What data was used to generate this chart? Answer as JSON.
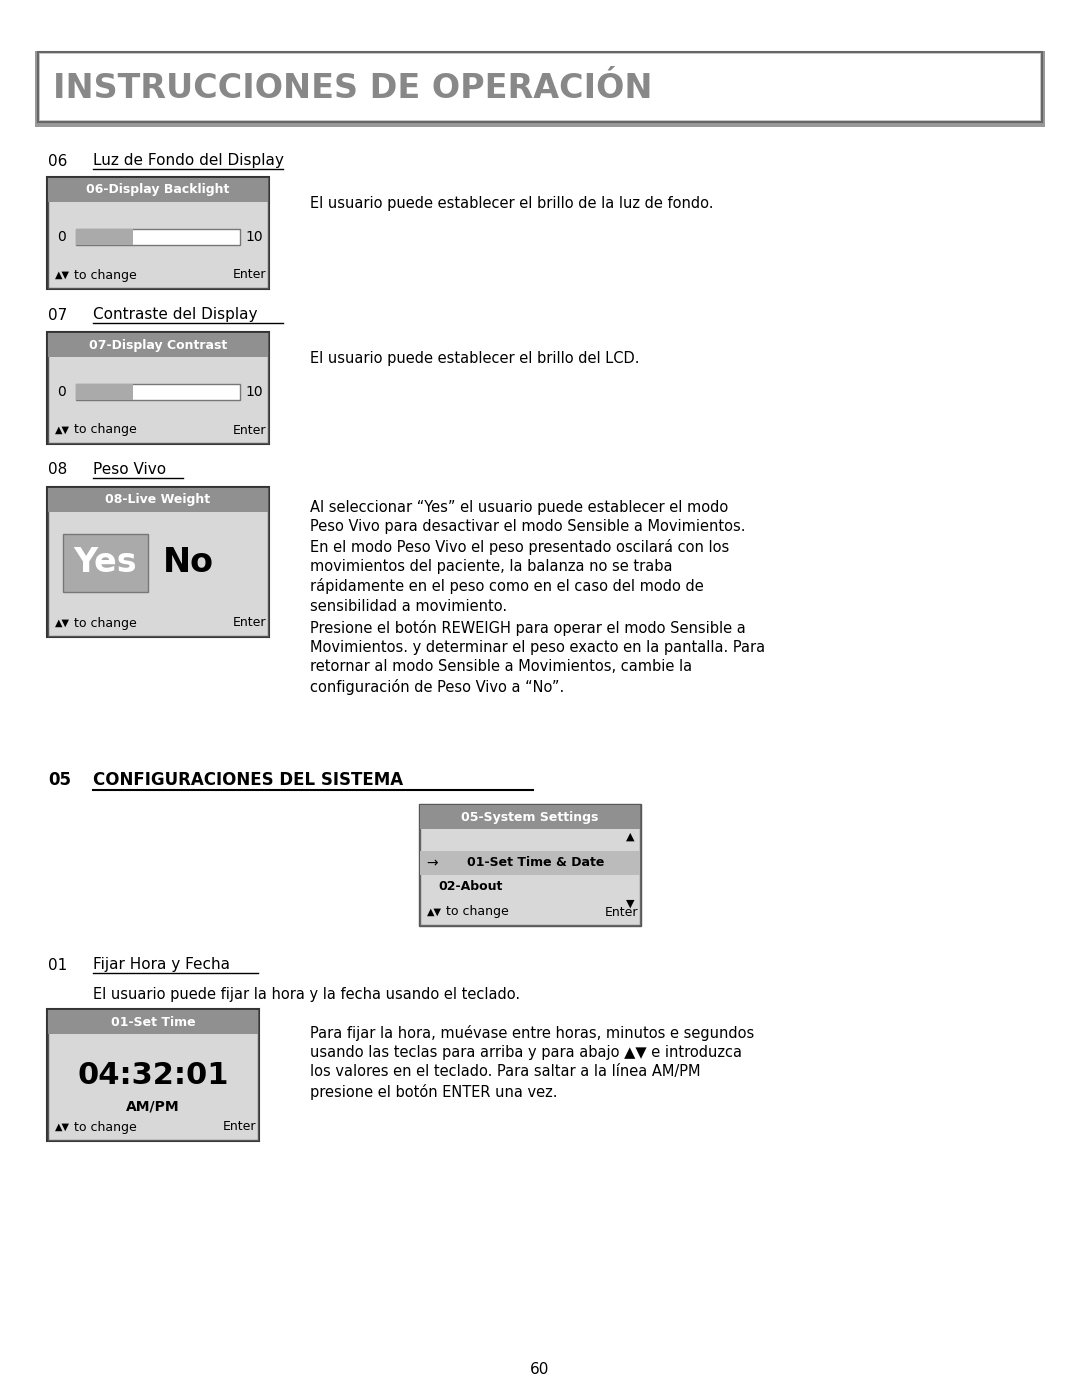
{
  "bg_color": "#ffffff",
  "title_text": "INSTRUCCIONES DE OPERACIÓN",
  "title_text_color": "#888888",
  "section06_title": "Luz de Fondo del Display",
  "section06_box_header": "06-Display Backlight",
  "section06_desc": "El usuario puede establecer el brillo de la luz de fondo.",
  "section07_title": "Contraste del Display",
  "section07_box_header": "07-Display Contrast",
  "section07_desc": "El usuario puede establecer el brillo del LCD.",
  "section08_title": "Peso Vivo",
  "section08_box_header": "08-Live Weight",
  "section08_desc1": "Al seleccionar “Yes” el usuario puede establecer el modo\nPeso Vivo para desactivar el modo Sensible a Movimientos.\nEn el modo Peso Vivo el peso presentado oscilará con los\nmovimientos del paciente, la balanza no se traba\nrápidamente en el peso como en el caso del modo de\nsensibilidad a movimiento.",
  "section08_desc2": "Presione el botón REWEIGH para operar el modo Sensible a\nMovimientos. y determinar el peso exacto en la pantalla. Para\nretornar al modo Sensible a Movimientos, cambie la\nconfiguración de Peso Vivo a “No”.",
  "section05_title": "CONFIGURACIONES DEL SISTEMA",
  "section05_box_header": "05-System Settings",
  "section05_item1": "01-Set Time & Date",
  "section05_item2": "02-About",
  "section01_title": "Fijar Hora y Fecha",
  "section01_subdesc": "El usuario puede fijar la hora y la fecha usando el teclado.",
  "section01_box_header": "01-Set Time",
  "section01_time": "04:32:01",
  "section01_ampm": "AM/PM",
  "section01_desc": "Para fijar la hora, muévase entre horas, minutos e segundos\nusando las teclas para arriba y para abajo ▲▼ e introduzca\nlos valores en el teclado. Para saltar a la línea AM/PM\npresione el botón ENTER una vez.",
  "footer_page": "60",
  "box_bg": "#d8d8d8",
  "box_header_bg": "#909090",
  "box_header_text": "#ffffff",
  "box_border": "#555555",
  "slider_bg": "#c0c0c0",
  "yes_bg": "#aaaaaa",
  "nav_text": "▲▼ to change",
  "enter_text": "Enter"
}
